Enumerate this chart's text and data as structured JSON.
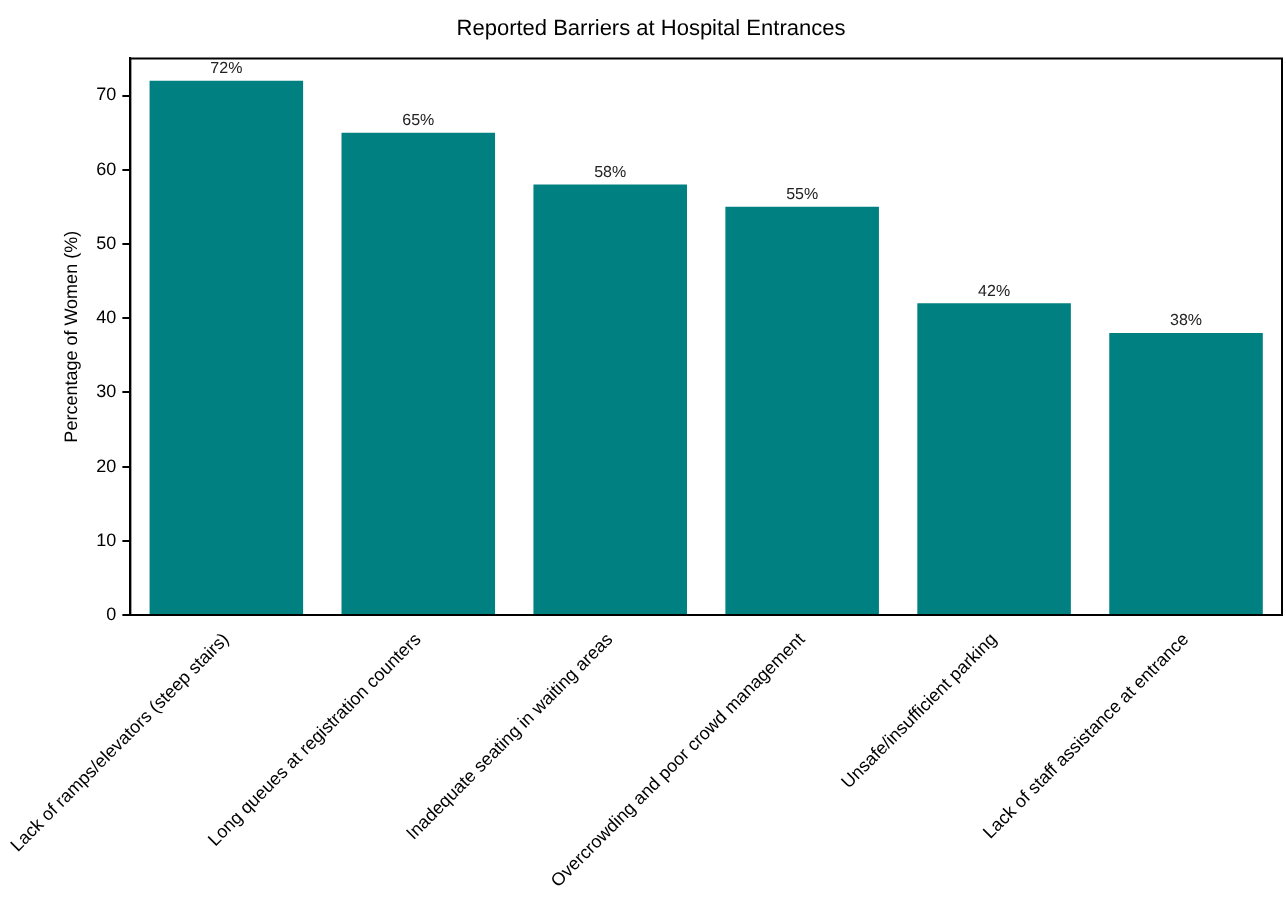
{
  "chart_data": {
    "type": "bar",
    "title": "Reported Barriers at Hospital Entrances",
    "ylabel": "Percentage of Women (%)",
    "categories": [
      "Lack of ramps/elevators (steep stairs)",
      "Long queues at registration counters",
      "Inadequate seating in waiting areas",
      "Overcrowding and poor crowd management",
      "Unsafe/insufficient parking",
      "Lack of staff assistance at entrance"
    ],
    "values": [
      72,
      65,
      58,
      55,
      42,
      38
    ],
    "value_labels": [
      "72%",
      "65%",
      "58%",
      "55%",
      "42%",
      "38%"
    ],
    "color": "#008080",
    "ylim": [
      0,
      75
    ],
    "yticks": [
      0,
      10,
      20,
      30,
      40,
      50,
      60,
      70
    ],
    "grid": false,
    "legend": false
  }
}
